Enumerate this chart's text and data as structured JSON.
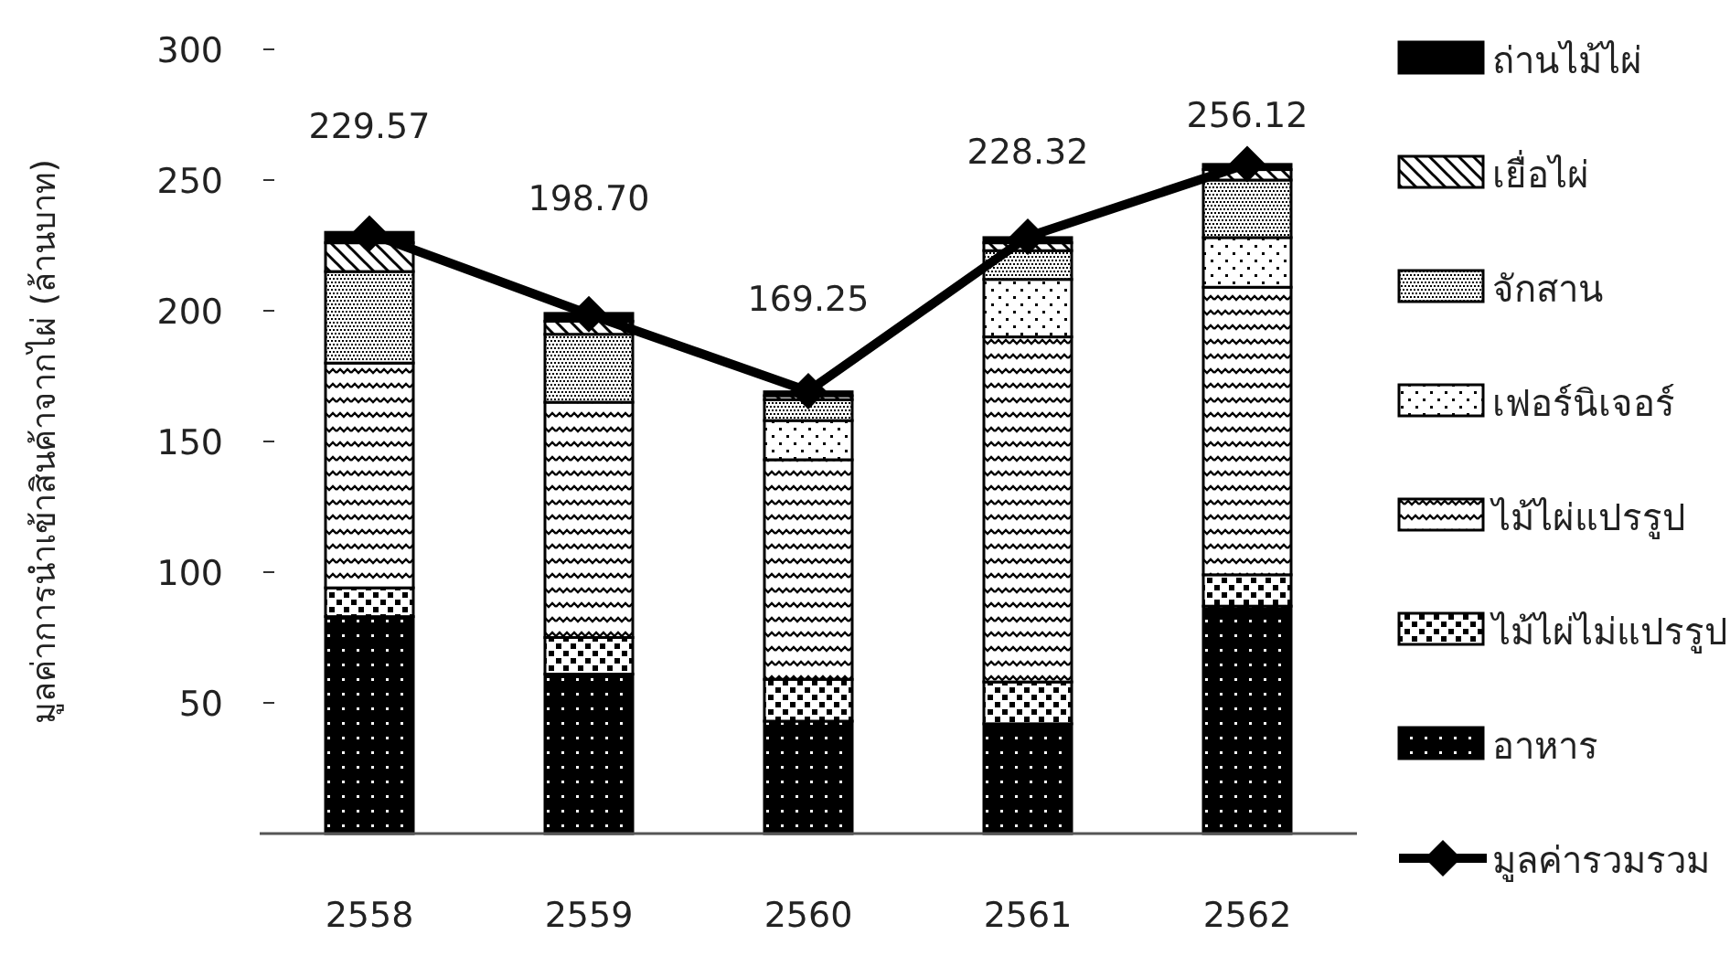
{
  "chart_data": {
    "type": "bar",
    "stacked": true,
    "ylabel": "มูลค่าการนำเข้าสินค้าจากไผ่ (ล้านบาท)",
    "categories": [
      "2558",
      "2559",
      "2560",
      "2561",
      "2562"
    ],
    "ylim": [
      0,
      300
    ],
    "yticks": [
      50,
      100,
      150,
      200,
      250,
      300
    ],
    "grid": false,
    "legend": "right",
    "series": [
      {
        "name": "อาหาร",
        "color": "#000000",
        "values": [
          83,
          61,
          43,
          42,
          87
        ]
      },
      {
        "name": "ไม้ไผ่ไม่แปรรูป",
        "color": "#000000",
        "values": [
          11,
          14,
          16,
          16,
          12
        ]
      },
      {
        "name": "ไม้ไผ่แปรรูป",
        "color": "#000000",
        "values": [
          86,
          90,
          84,
          132,
          110
        ]
      },
      {
        "name": "เฟอร์นิเจอร์",
        "color": "#000000",
        "values": [
          0,
          0,
          15,
          22,
          19
        ]
      },
      {
        "name": "จักสาน",
        "color": "#000000",
        "values": [
          35,
          26,
          8,
          11,
          22
        ]
      },
      {
        "name": "เยื่อไผ่",
        "color": "#000000",
        "values": [
          11,
          5,
          1.5,
          3,
          4
        ]
      },
      {
        "name": "ถ่านไม้ไผ่",
        "color": "#000000",
        "values": [
          4,
          3,
          1.5,
          2,
          2
        ]
      },
      {
        "name": "มูลค่ารวมรวม",
        "type": "line",
        "color": "#000000",
        "marker": "diamond",
        "values": [
          229.57,
          198.7,
          169.25,
          228.32,
          256.12
        ],
        "value_labels": [
          "229.57",
          "198.70",
          "169.25",
          "228.32",
          "256.12"
        ]
      }
    ]
  }
}
